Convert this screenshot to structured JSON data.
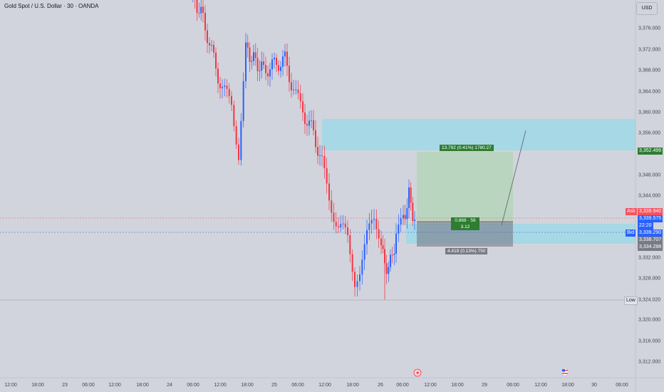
{
  "header": {
    "title": "Gold Spot / U.S. Dollar · 30 · OANDA",
    "currency_button": "USD"
  },
  "price_scale": {
    "ticks": [
      "3,376.000",
      "3,372.000",
      "3,368.000",
      "3,364.000",
      "3,360.000",
      "3,356.000",
      "3,348.000",
      "3,344.000",
      "3,332.000",
      "3,328.000",
      "3,324.000",
      "3,320.000",
      "3,316.000",
      "3,312.000"
    ]
  },
  "time_scale": {
    "ticks": [
      "12:00",
      "18:00",
      "23",
      "06:00",
      "12:00",
      "18:00",
      "24",
      "06:00",
      "12:00",
      "18:00",
      "25",
      "06:00",
      "12:00",
      "18:00",
      "26",
      "06:00",
      "12:00",
      "18:00",
      "29",
      "06:00",
      "12:00",
      "18:00",
      "30",
      "06:00"
    ]
  },
  "price_tags": {
    "target": "3,352.499",
    "ask_label": "Ask",
    "ask": "3,339.940",
    "last": "3,339.575",
    "countdown": "22:20",
    "bid_label": "Bid",
    "bid": "3,339.290",
    "entry": "3,338.707",
    "stop": "3,334.288",
    "low_label": "Low",
    "low": "3,324.020"
  },
  "position_tool": {
    "target_text": "13.792 (0.41%) 1780.27",
    "center_line1": "0.868 · 56",
    "center_line2": "3.12",
    "stop_text": "4.419 (0.13%) 750"
  },
  "colors": {
    "up": "#2962ff",
    "down": "#f23645",
    "profit_zone": "#a5d6a7",
    "loss_zone": "#787b86",
    "supply_zone": "#9fd8e6",
    "ask": "#f7525f",
    "bid": "#2962ff"
  },
  "chart_data": {
    "type": "candlestick",
    "symbol": "XAUUSD",
    "interval": "30",
    "ylim": [
      3310,
      3382
    ]
  }
}
